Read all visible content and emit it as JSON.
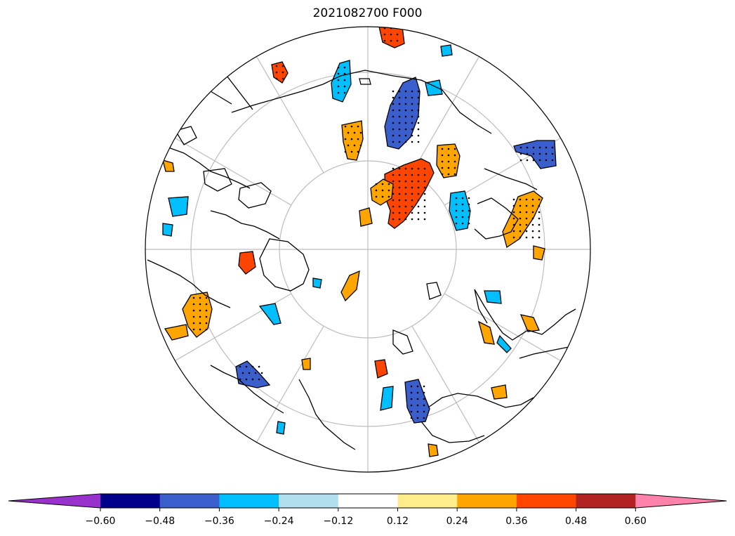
{
  "title": "2021082700 F000",
  "map": {
    "projection": "north-polar-stereographic",
    "graticule": "on",
    "stippling": "significant regions"
  },
  "colorbar": {
    "ticks": [
      "−0.60",
      "−0.48",
      "−0.36",
      "−0.24",
      "−0.12",
      "0.12",
      "0.24",
      "0.36",
      "0.48",
      "0.60"
    ],
    "colors": [
      "#9932CC",
      "#00008B",
      "#3A5FCD",
      "#00BFFF",
      "#B2DFEE",
      "#FFFFFF",
      "#FFEC8B",
      "#FFA500",
      "#FF4500",
      "#B22222",
      "#FF82AB"
    ],
    "extend": "both"
  }
}
